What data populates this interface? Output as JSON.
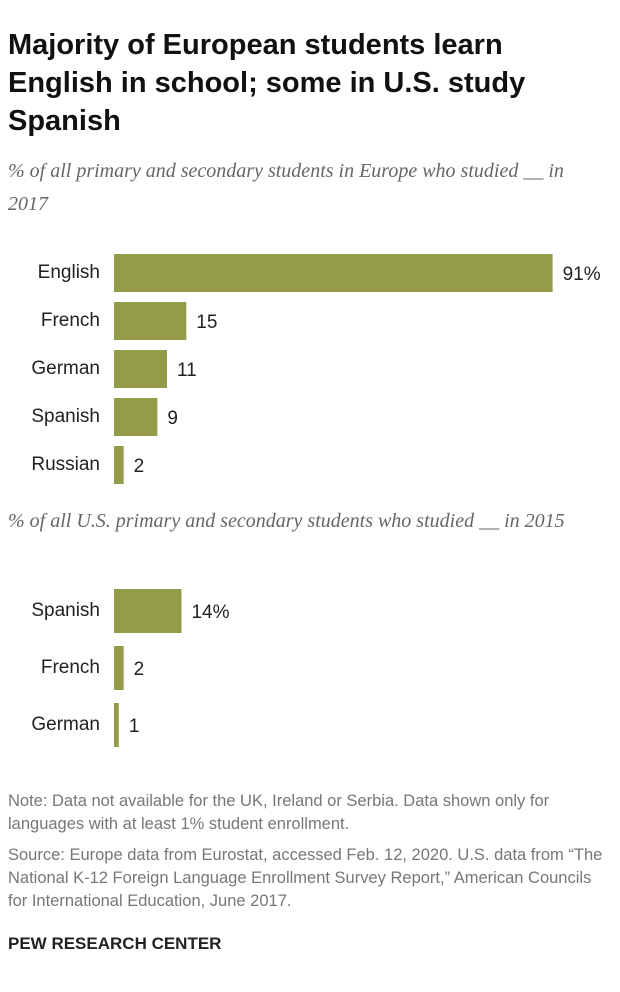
{
  "title": "Majority of European students learn English in school; some in U.S. study Spanish",
  "chart_data": [
    {
      "type": "bar",
      "subtitle": "% of all primary and secondary students in Europe who studied __ in 2017",
      "categories": [
        "English",
        "French",
        "German",
        "Spanish",
        "Russian"
      ],
      "values": [
        91,
        15,
        11,
        9,
        2
      ],
      "value_labels": [
        "91%",
        "15",
        "11",
        "9",
        "2"
      ],
      "color": "#949b49"
    },
    {
      "type": "bar",
      "subtitle": "% of all U.S. primary and secondary students who studied __ in 2015",
      "categories": [
        "Spanish",
        "French",
        "German"
      ],
      "values": [
        14,
        2,
        1
      ],
      "value_labels": [
        "14%",
        "2",
        "1"
      ],
      "color": "#949b49"
    }
  ],
  "note": "Note: Data not available for the UK, Ireland or Serbia. Data shown only for languages with at least 1% student enrollment.",
  "source": "Source: Europe data from Eurostat, accessed Feb. 12, 2020. U.S. data from “The National K-12 Foreign Language Enrollment Survey Report,” American Councils for International Education, June 2017.",
  "footer": "PEW RESEARCH CENTER"
}
